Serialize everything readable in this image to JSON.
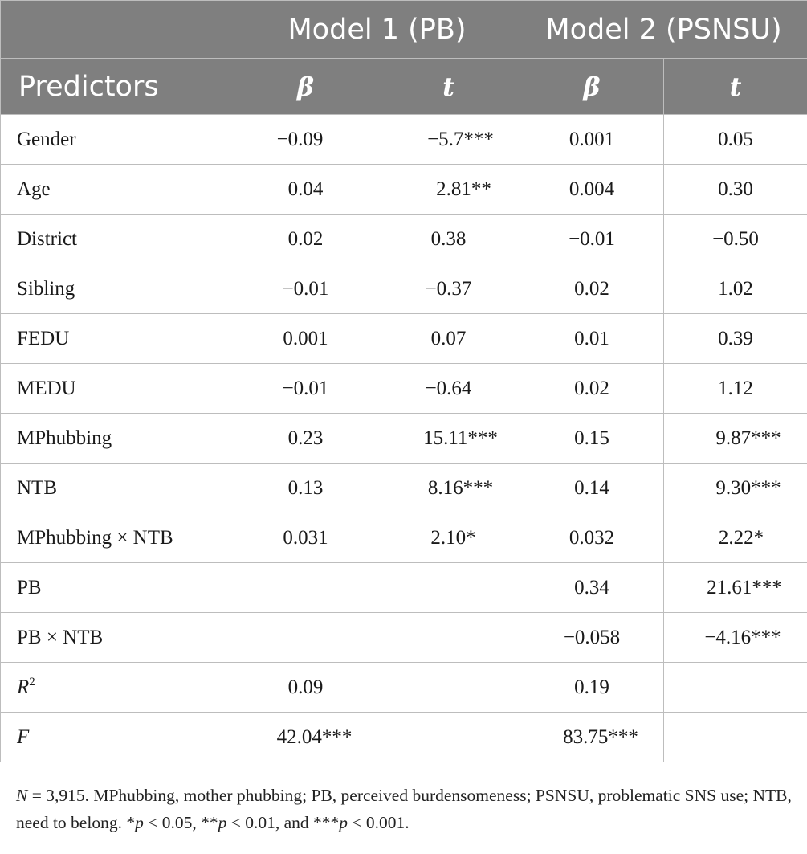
{
  "header": {
    "model1": "Model 1 (PB)",
    "model2": "Model 2 (PSNSU)",
    "predictors": "Predictors",
    "beta": "β",
    "t": "t"
  },
  "rows": [
    {
      "label": "Gender",
      "m1_beta": "−0.09",
      "m1_t": "−5.7***",
      "m2_beta": "0.001",
      "m2_t": "0.05"
    },
    {
      "label": "Age",
      "m1_beta": "0.04",
      "m1_t": "2.81**",
      "m2_beta": "0.004",
      "m2_t": "0.30"
    },
    {
      "label": "District",
      "m1_beta": "0.02",
      "m1_t": "0.38",
      "m2_beta": "−0.01",
      "m2_t": "−0.50"
    },
    {
      "label": "Sibling",
      "m1_beta": "−0.01",
      "m1_t": "−0.37",
      "m2_beta": "0.02",
      "m2_t": "1.02"
    },
    {
      "label": "FEDU",
      "m1_beta": "0.001",
      "m1_t": "0.07",
      "m2_beta": "0.01",
      "m2_t": "0.39"
    },
    {
      "label": "MEDU",
      "m1_beta": "−0.01",
      "m1_t": "−0.64",
      "m2_beta": "0.02",
      "m2_t": "1.12"
    },
    {
      "label": "MPhubbing",
      "m1_beta": "0.23",
      "m1_t": "15.11***",
      "m2_beta": "0.15",
      "m2_t": "9.87***"
    },
    {
      "label": "NTB",
      "m1_beta": "0.13",
      "m1_t": "8.16***",
      "m2_beta": "0.14",
      "m2_t": "9.30***"
    },
    {
      "label": "MPhubbing × NTB",
      "m1_beta": "0.031",
      "m1_t": "2.10*",
      "m2_beta": "0.032",
      "m2_t": "2.22*"
    },
    {
      "label": "PB",
      "m1_beta": "",
      "m1_t": "",
      "m2_beta": "0.34",
      "m2_t": "21.61***"
    },
    {
      "label": "PB × NTB",
      "m1_beta": "",
      "m1_t": "",
      "m2_beta": "−0.058",
      "m2_t": "−4.16***"
    }
  ],
  "stats": {
    "r2_label": "R",
    "r2_sup": "2",
    "r2_m1": "0.09",
    "r2_m2": "0.19",
    "f_label": "F",
    "f_m1": "42.04***",
    "f_m2": "83.75***"
  },
  "note": {
    "n_label": "N",
    "text1": " = 3,915. MPhubbing, mother phubbing; PB, perceived burdensomeness; PSNSU, problematic SNS use; NTB, need to belong. *",
    "p": "p",
    "text2": " < 0.05, **",
    "text3": " < 0.01, and ***",
    "text4": " < 0.001."
  },
  "colors": {
    "header_bg": "#7f7f7f",
    "header_text": "#ffffff",
    "border": "#bdbdbd"
  }
}
